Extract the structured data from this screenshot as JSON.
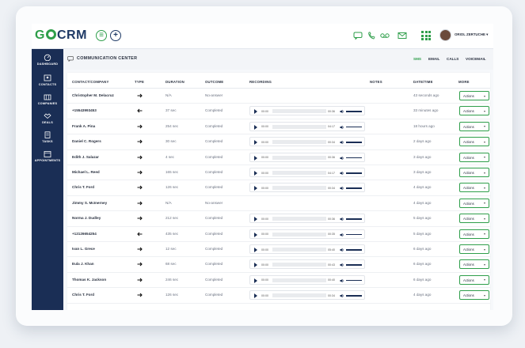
{
  "header": {
    "logo_prefix": "G",
    "logo_suffix": "CRM",
    "user_name": "ORIOL ZERTUCHE ▾",
    "icons": [
      "chat-icon",
      "phone-icon",
      "voicemail-icon",
      "email-icon",
      "apps-grid-icon"
    ]
  },
  "sidebar": {
    "items": [
      {
        "label": "DASHBOARD",
        "icon": "dashboard-icon"
      },
      {
        "label": "CONTACTS",
        "icon": "contacts-icon"
      },
      {
        "label": "COMPANIES",
        "icon": "companies-icon"
      },
      {
        "label": "DEALS",
        "icon": "deals-icon"
      },
      {
        "label": "TASKS",
        "icon": "tasks-icon"
      },
      {
        "label": "APPOINTMENTS",
        "icon": "appointments-icon"
      }
    ]
  },
  "comm": {
    "title": "COMMUNICATION CENTER",
    "tabs": [
      {
        "label": "SMS",
        "active": true
      },
      {
        "label": "EMAIL",
        "active": false
      },
      {
        "label": "CALLS",
        "active": false
      },
      {
        "label": "VOICEMAIL",
        "active": false
      }
    ]
  },
  "table": {
    "headers": {
      "contact": "CONTACT/COMPANY",
      "type": "TYPE",
      "duration": "DURATION",
      "outcome": "OUTCOME",
      "recording": "RECORDING",
      "notes": "NOTES",
      "date": "DATE/TIME",
      "more": "MORE"
    },
    "actions_label": "Actions",
    "player_start": "00:00",
    "rows": [
      {
        "name": "Christopher M. Delacruz",
        "dir": "out",
        "duration": "N/A",
        "outcome": "No-answer",
        "rec": "",
        "date": "43 seconds ago"
      },
      {
        "name": "+15543993453",
        "dir": "in",
        "duration": "37 sec",
        "outcome": "Completed",
        "rec": "00:36",
        "date": "33 minutes ago"
      },
      {
        "name": "Frank A. Pina",
        "dir": "out",
        "duration": "254 sec",
        "outcome": "Completed",
        "rec": "04:17",
        "date": "18 hours ago"
      },
      {
        "name": "Daniel C. Rogers",
        "dir": "out",
        "duration": "30 sec",
        "outcome": "Completed",
        "rec": "00:34",
        "date": "2 days ago"
      },
      {
        "name": "Edith J. Salazar",
        "dir": "out",
        "duration": "4 sec",
        "outcome": "Completed",
        "rec": "00:36",
        "date": "3 days ago"
      },
      {
        "name": "Michael L. Reed",
        "dir": "out",
        "duration": "165 sec",
        "outcome": "Completed",
        "rec": "04:17",
        "date": "3 days ago"
      },
      {
        "name": "Chris T. Ford",
        "dir": "out",
        "duration": "126 sec",
        "outcome": "Completed",
        "rec": "00:34",
        "date": "4 days ago"
      },
      {
        "name": "Jimmy S. McInerney",
        "dir": "out",
        "duration": "N/A",
        "outcome": "No-answer",
        "rec": "",
        "date": "4 days ago"
      },
      {
        "name": "Norma J. Dudley",
        "dir": "out",
        "duration": "212 sec",
        "outcome": "Completed",
        "rec": "00:36",
        "date": "5 days ago"
      },
      {
        "name": "+12126654254",
        "dir": "in",
        "duration": "435 sec",
        "outcome": "Completed",
        "rec": "00:35",
        "date": "5 days ago"
      },
      {
        "name": "Ivan L. Grece",
        "dir": "out",
        "duration": "12 sec",
        "outcome": "Completed",
        "rec": "05:40",
        "date": "6 days ago"
      },
      {
        "name": "Eula J. Khan",
        "dir": "out",
        "duration": "68 sec",
        "outcome": "Completed",
        "rec": "00:43",
        "date": "6 days ago"
      },
      {
        "name": "Thomas K. Jackson",
        "dir": "out",
        "duration": "246 sec",
        "outcome": "Completed",
        "rec": "00:40",
        "date": "6 days ago"
      },
      {
        "name": "Chris T. Ford",
        "dir": "out",
        "duration": "126 sec",
        "outcome": "Completed",
        "rec": "00:34",
        "date": "4 days ago"
      }
    ]
  }
}
